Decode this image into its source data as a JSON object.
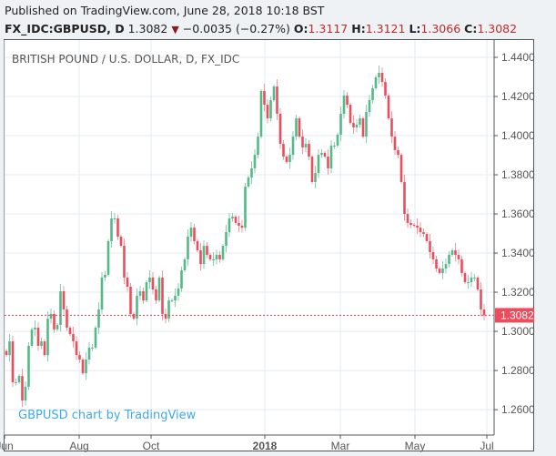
{
  "header": {
    "published": "Published on TradingView.com, June 28, 2018 10:18 BST",
    "symbol": "FX_IDC:GBPUSD, D",
    "last": "1.3082",
    "change": "−0.0035 (−0.27%)",
    "o_label": "O:",
    "o": "1.3117",
    "h_label": "H:",
    "h": "1.3121",
    "l_label": "L:",
    "l": "1.3066",
    "c_label": "C:",
    "c": "1.3082"
  },
  "colors": {
    "up": "#53b987",
    "down": "#eb4d5c",
    "accent": "#c62828",
    "watermark": "#3fa9e8"
  },
  "chart_data": {
    "type": "candlestick",
    "title": "BRITISH POUND / U.S. DOLLAR, D, FX_IDC",
    "watermark": "GBPUSD chart by TradingView",
    "ylim": [
      1.25,
      1.448
    ],
    "y_ticks": [
      "1.4400",
      "1.4200",
      "1.4000",
      "1.3800",
      "1.3600",
      "1.3400",
      "1.3200",
      "1.3000",
      "1.2800",
      "1.2600"
    ],
    "x_ticks": [
      {
        "label": "Jun",
        "bold": false
      },
      {
        "label": "Aug",
        "bold": false
      },
      {
        "label": "Oct",
        "bold": false
      },
      {
        "label": "2018",
        "bold": true
      },
      {
        "label": "Mar",
        "bold": false
      },
      {
        "label": "May",
        "bold": false
      },
      {
        "label": "Jul",
        "bold": false
      }
    ],
    "last_price": 1.3082,
    "last_price_label": "1.3082",
    "first_open": 1.29,
    "closes": [
      1.2879,
      1.2949,
      1.274,
      1.274,
      1.2772,
      1.2647,
      1.2717,
      1.2926,
      1.301,
      1.3019,
      1.2926,
      1.2949,
      1.2879,
      1.3065,
      1.3089,
      1.301,
      1.3033,
      1.3205,
      1.3112,
      1.3019,
      1.2986,
      1.2949,
      1.2879,
      1.2856,
      1.2786,
      1.2856,
      1.2917,
      1.2917,
      1.3019,
      1.3112,
      1.3275,
      1.3289,
      1.3461,
      1.3577,
      1.3577,
      1.3484,
      1.3437,
      1.3275,
      1.3228,
      1.3089,
      1.3065,
      1.3182,
      1.3205,
      1.3158,
      1.3251,
      1.3275,
      1.3214,
      1.3158,
      1.3275,
      1.3089,
      1.3065,
      1.3158,
      1.3158,
      1.3182,
      1.3219,
      1.3312,
      1.3368,
      1.3484,
      1.353,
      1.3461,
      1.3414,
      1.3344,
      1.3437,
      1.3391,
      1.3368,
      1.3368,
      1.3391,
      1.3368,
      1.3437,
      1.3507,
      1.3577,
      1.3586,
      1.3554,
      1.354,
      1.353,
      1.374,
      1.3786,
      1.3833,
      1.3902,
      1.3995,
      1.4228,
      1.4158,
      1.4088,
      1.4181,
      1.4251,
      1.4112,
      1.3958,
      1.3893,
      1.3865,
      1.3902,
      1.3995,
      1.4088,
      1.3995,
      1.394,
      1.3958,
      1.3893,
      1.3763,
      1.3809,
      1.3902,
      1.3912,
      1.3893,
      1.3833,
      1.3949,
      1.3949,
      1.4005,
      1.4112,
      1.4205,
      1.4158,
      1.4065,
      1.4042,
      1.4056,
      1.4088,
      1.3995,
      1.4121,
      1.4181,
      1.4242,
      1.4298,
      1.4321,
      1.4274,
      1.4205,
      1.4088,
      1.3995,
      1.3926,
      1.3902,
      1.3763,
      1.36,
      1.3554,
      1.3544,
      1.354,
      1.353,
      1.3507,
      1.3498,
      1.3461,
      1.3405,
      1.3368,
      1.3321,
      1.3298,
      1.3321,
      1.3344,
      1.3391,
      1.3414,
      1.3391,
      1.3368,
      1.3298,
      1.3251,
      1.3251,
      1.3275,
      1.3275,
      1.3214,
      1.3112,
      1.3082
    ]
  }
}
